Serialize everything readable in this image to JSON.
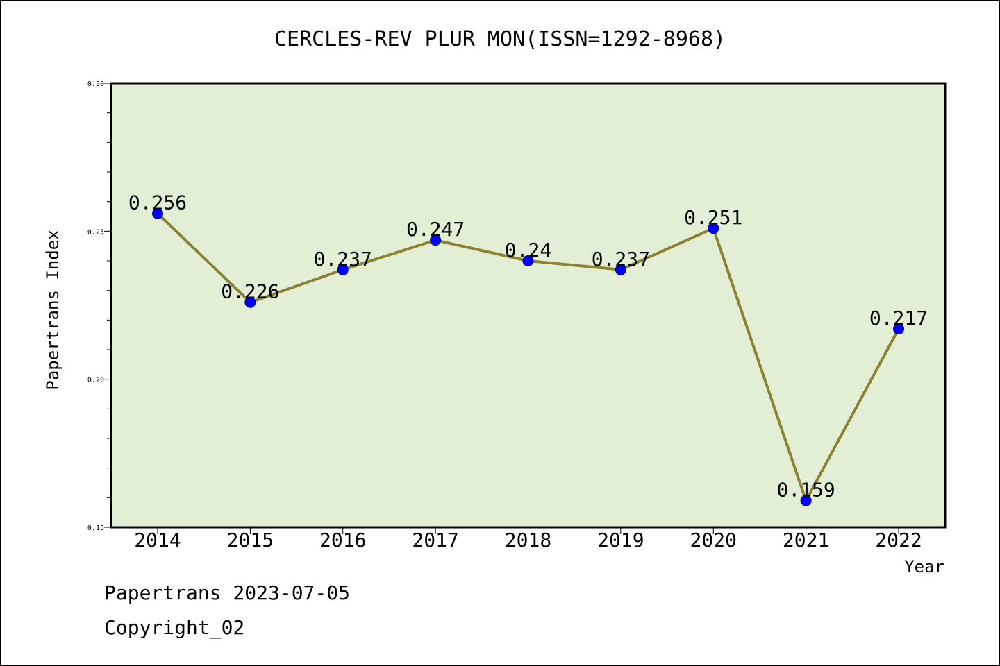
{
  "chart_data": {
    "type": "line",
    "title": "CERCLES-REV PLUR MON(ISSN=1292-8968)",
    "xlabel": "Year",
    "ylabel": "Papertrans Index",
    "categories": [
      "2014",
      "2015",
      "2016",
      "2017",
      "2018",
      "2019",
      "2020",
      "2021",
      "2022"
    ],
    "series": [
      {
        "values": [
          0.256,
          0.226,
          0.237,
          0.247,
          0.24,
          0.237,
          0.251,
          0.159,
          0.217
        ],
        "data_labels": [
          "0.256",
          "0.226",
          "0.237",
          "0.247",
          "0.24",
          "0.237",
          "0.251",
          "0.159",
          "0.217"
        ]
      }
    ],
    "ylim": [
      0.15,
      0.3
    ],
    "yticks": [
      0.15,
      0.2,
      0.25,
      0.3
    ],
    "ytick_labels": [
      "0.15",
      "0.20",
      "0.25",
      "0.30"
    ],
    "y_minor_step": 0.01,
    "grid": false,
    "legend": "none",
    "colors": {
      "plot_background": "#e2efd4",
      "line": "#8c8234",
      "marker": "#0000ff",
      "marker_edge": "#000080"
    }
  },
  "footer": {
    "line1": "Papertrans 2023-07-05",
    "line2": "Copyright_02"
  }
}
